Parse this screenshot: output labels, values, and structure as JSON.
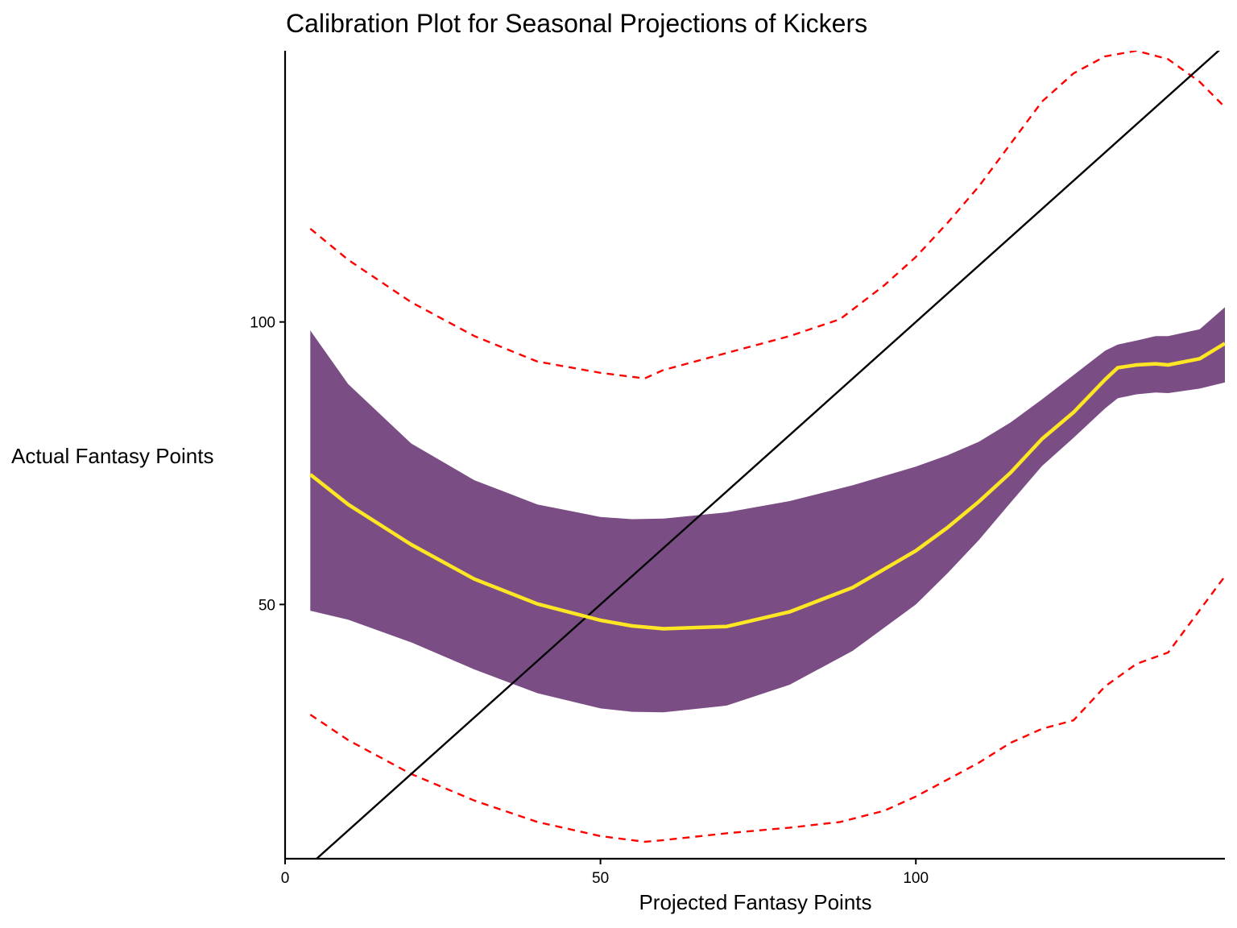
{
  "chart_data": {
    "type": "line",
    "title": "Calibration Plot for Seasonal Projections of Kickers",
    "xlabel": "Projected Fantasy Points",
    "ylabel": "Actual Fantasy Points",
    "xlim": [
      0,
      149
    ],
    "ylim": [
      5,
      148
    ],
    "x_ticks": [
      0,
      50,
      100
    ],
    "y_ticks": [
      50,
      100
    ],
    "grid": false,
    "legend": "none",
    "colors": {
      "band": "#7B4D85",
      "fit": "#FDE725",
      "prediction_interval": "#FF0000",
      "reference": "#000000",
      "axis": "#000000"
    },
    "reference_line": {
      "slope": 1,
      "intercept": 0
    },
    "fit": {
      "x": [
        4,
        10,
        20,
        30,
        40,
        50,
        55,
        60,
        70,
        80,
        90,
        100,
        105,
        110,
        115,
        120,
        125,
        130,
        132,
        135,
        138,
        140,
        145,
        149
      ],
      "y": [
        73,
        67.7,
        60.6,
        54.5,
        50.1,
        47.2,
        46.2,
        45.7,
        46.1,
        48.7,
        53,
        59.5,
        63.6,
        68.2,
        73.3,
        79.3,
        84,
        89.8,
        91.9,
        92.4,
        92.6,
        92.4,
        93.5,
        96.2
      ]
    },
    "band_upper": {
      "x": [
        4,
        10,
        20,
        30,
        40,
        50,
        55,
        60,
        70,
        80,
        90,
        100,
        105,
        110,
        115,
        120,
        125,
        130,
        132,
        135,
        138,
        140,
        145,
        149
      ],
      "y": [
        98.5,
        89,
        78.5,
        72,
        67.7,
        65.5,
        65.1,
        65.2,
        66.3,
        68.3,
        71.1,
        74.4,
        76.4,
        78.8,
        82.2,
        86.3,
        90.6,
        94.9,
        96,
        96.7,
        97.5,
        97.5,
        98.7,
        102.6
      ]
    },
    "band_lower": {
      "x": [
        4,
        10,
        20,
        30,
        40,
        50,
        55,
        60,
        70,
        80,
        90,
        100,
        105,
        110,
        115,
        120,
        125,
        130,
        132,
        135,
        138,
        140,
        145,
        149
      ],
      "y": [
        48.9,
        47.3,
        43.3,
        38.5,
        34.3,
        31.6,
        31,
        30.9,
        32.1,
        35.8,
        41.8,
        50,
        55.5,
        61.4,
        68,
        74.5,
        79.5,
        84.7,
        86.5,
        87.2,
        87.5,
        87.4,
        88.2,
        89.3
      ]
    },
    "pi_upper": {
      "x": [
        4,
        10,
        20,
        30,
        40,
        50,
        57,
        60,
        70,
        80,
        88,
        95,
        100,
        105,
        110,
        115,
        120,
        125,
        130,
        135,
        140,
        145,
        149
      ],
      "y": [
        116.5,
        111,
        103.5,
        97.5,
        93,
        91,
        90,
        91.5,
        94.5,
        97.5,
        100.5,
        106.5,
        111.5,
        117.5,
        124,
        131.5,
        139,
        144,
        147,
        148,
        146.5,
        142.5,
        138
      ]
    },
    "pi_lower": {
      "x": [
        4,
        10,
        20,
        30,
        40,
        50,
        57,
        60,
        70,
        80,
        88,
        95,
        100,
        105,
        110,
        115,
        120,
        125,
        130,
        135,
        140,
        145,
        149
      ],
      "y": [
        30.5,
        26,
        20,
        15.3,
        11.5,
        9,
        8,
        8.3,
        9.5,
        10.5,
        11.5,
        13.5,
        16,
        19,
        22,
        25.5,
        28,
        29.5,
        35.5,
        39.5,
        41.5,
        49,
        55
      ]
    }
  }
}
